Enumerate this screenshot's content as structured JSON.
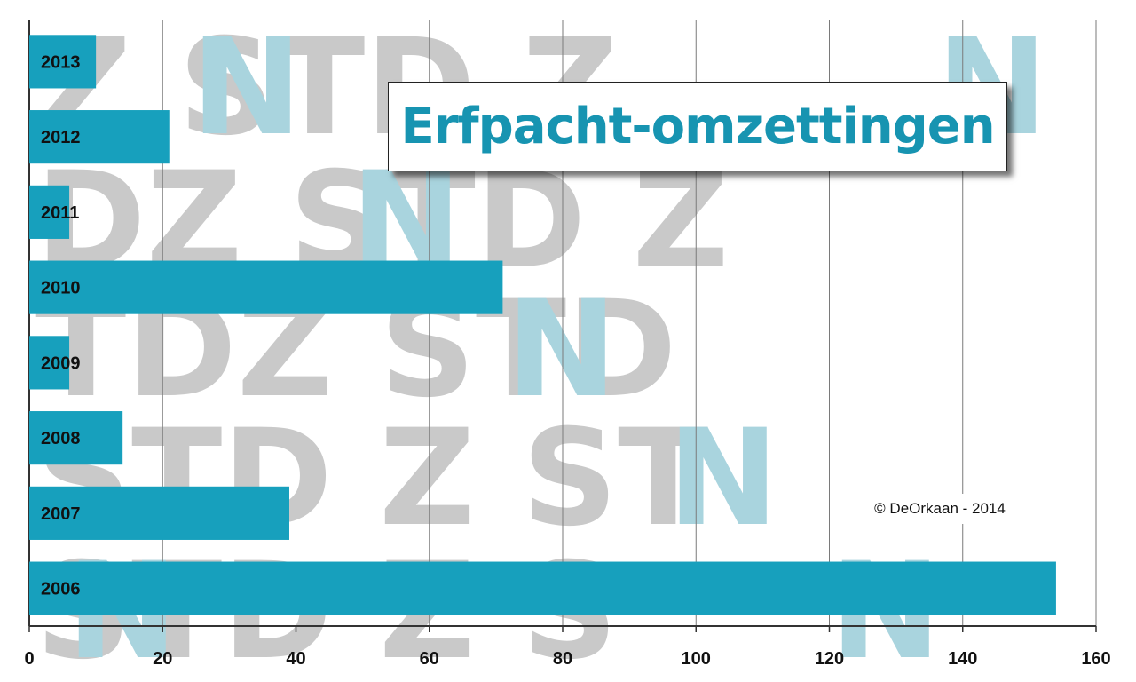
{
  "chart_data": {
    "type": "bar",
    "orientation": "horizontal",
    "title": "Erfpacht-omzettingen",
    "categories": [
      "2013",
      "2012",
      "2011",
      "2010",
      "2009",
      "2008",
      "2007",
      "2006"
    ],
    "values": [
      10,
      21,
      6,
      71,
      6,
      14,
      39,
      154
    ],
    "xlim": [
      0,
      160
    ],
    "x_ticks": [
      "0",
      "20",
      "40",
      "60",
      "80",
      "100",
      "120",
      "140",
      "160"
    ],
    "grid": "vertical",
    "bar_color": "#17a0bd",
    "annotation": "© DeOrkaan - 2014"
  }
}
